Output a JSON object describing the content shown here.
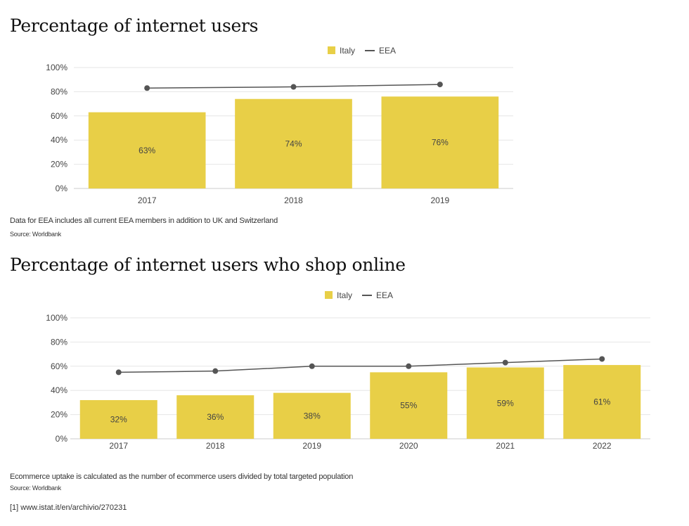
{
  "colors": {
    "italy": "#e8cf47",
    "eea": "#555555",
    "grid": "#e6e6e6",
    "axis": "#cccccc",
    "text": "#444444"
  },
  "chart_data": [
    {
      "type": "bar",
      "title": "Percentage of internet users",
      "legend": {
        "placement": "top-center",
        "bar_label": "Italy",
        "line_label": "EEA"
      },
      "categories": [
        "2017",
        "2018",
        "2019"
      ],
      "series": [
        {
          "name": "Italy",
          "kind": "bar",
          "values": [
            63,
            74,
            76
          ],
          "labels": [
            "63%",
            "74%",
            "76%"
          ]
        },
        {
          "name": "EEA",
          "kind": "line",
          "values": [
            83,
            84,
            86
          ]
        }
      ],
      "ylim": [
        0,
        100
      ],
      "yticks": [
        0,
        20,
        40,
        60,
        80,
        100
      ],
      "ytick_labels": [
        "0%",
        "20%",
        "40%",
        "60%",
        "80%",
        "100%"
      ],
      "xlabel": "",
      "ylabel": "",
      "grid": true,
      "note": "Data for EEA includes all current EEA members in addition to UK and Switzerland",
      "source": "Source: Worldbank"
    },
    {
      "type": "bar",
      "title": "Percentage of internet users who shop online",
      "legend": {
        "placement": "top-center",
        "bar_label": "Italy",
        "line_label": "EEA"
      },
      "categories": [
        "2017",
        "2018",
        "2019",
        "2020",
        "2021",
        "2022"
      ],
      "series": [
        {
          "name": "Italy",
          "kind": "bar",
          "values": [
            32,
            36,
            38,
            55,
            59,
            61
          ],
          "labels": [
            "32%",
            "36%",
            "38%",
            "55%",
            "59%",
            "61%"
          ]
        },
        {
          "name": "EEA",
          "kind": "line",
          "values": [
            55,
            56,
            60,
            60,
            63,
            66
          ]
        }
      ],
      "ylim": [
        0,
        100
      ],
      "yticks": [
        0,
        20,
        40,
        60,
        80,
        100
      ],
      "ytick_labels": [
        "0%",
        "20%",
        "40%",
        "60%",
        "80%",
        "100%"
      ],
      "xlabel": "",
      "ylabel": "",
      "grid": true,
      "note": "Ecommerce uptake is calculated as the number of ecommerce users divided by total targeted population",
      "source": "Source: Worldbank"
    }
  ],
  "footnote": "[1] www.istat.it/en/archivio/270231"
}
